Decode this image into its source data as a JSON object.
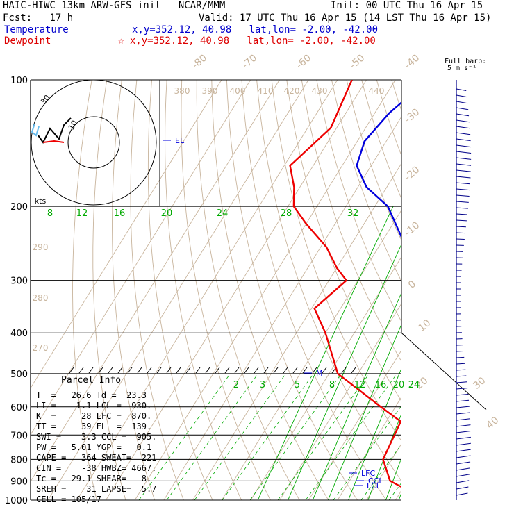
{
  "header": {
    "title": "HAIC-HIWC 13km ARW-GFS init   NCAR/MMM",
    "init": "Init: 00 UTC Thu 16 Apr 15",
    "fcst": "Fcst:   17 h",
    "valid": "Valid: 17 UTC Thu 16 Apr 15 (14 LST Thu 16 Apr 15)",
    "temp_label": "Temperature",
    "temp_loc": "x,y=352.12, 40.98   lat,lon= -2.00, -42.00",
    "dew_label": "Dewpoint",
    "dew_loc": "☆ x,y=352.12, 40.98   lat,lon= -2.00, -42.00",
    "barb_note": "Full barb:",
    "barb_note2": "5 m s⁻¹"
  },
  "colors": {
    "temperature": "#0000dd",
    "dewpoint": "#ee0000",
    "mixing_ratio": "#00aa00",
    "dry_adiabat": "#c8b49c",
    "wind": "#000088"
  },
  "parcel": {
    "title": "Parcel Info",
    "lines": [
      "T  =   26.6 Td =  23.3",
      "LI =   -1.1 LCL =  930.",
      "K  =     28 LFC =  870.",
      "TT =     39 EL  =  139.",
      "SWI =    3.3 CCL =  905.",
      "PW =   5.01 YGP =   0.1",
      "CAPE =   364 SWEAT=  221",
      "CIN =    -38 HWBZ= 4667.",
      "Tc =   29.1 SHEAR=   8.",
      "SREH =    31 LAPSE=  5.7",
      "CELL = 105/17"
    ]
  },
  "chart_data": {
    "type": "line",
    "title": "",
    "pressure_levels": [
      100,
      200,
      300,
      400,
      500,
      600,
      700,
      800,
      900,
      1000
    ],
    "pressure_labels": [
      "100",
      "200",
      "300",
      "400",
      "500",
      "600",
      "700",
      "800",
      "900",
      "1000"
    ],
    "dry_adiabat_labels": [
      "-80",
      "-70",
      "-60",
      "-50",
      "-40",
      "-30",
      "-20",
      "-10",
      "0",
      "10",
      "20",
      "30",
      "40"
    ],
    "theta_labels": [
      "380",
      "390",
      "400",
      "410",
      "420",
      "430",
      "440",
      "290",
      "280",
      "270"
    ],
    "mixing_labels_upper": [
      "8",
      "12",
      "16",
      "20",
      "24",
      "28",
      "32"
    ],
    "mixing_labels_lower": [
      "2",
      "3",
      "5",
      "8",
      "12",
      "16",
      "20",
      "24"
    ],
    "level_markers": [
      "EL",
      "LFC",
      "CCL",
      "LCL",
      "M"
    ],
    "hodograph_labels": [
      "30",
      "10",
      "kts"
    ],
    "series": [
      {
        "name": "Temperature",
        "x": [
          -60.5,
          -65.0,
          -67.5,
          -65.0,
          -57.0,
          -45.5,
          -30.5,
          -18.5,
          -12.0,
          -5.0,
          2.0,
          8.5,
          14.0,
          18.5,
          21.0,
          23.5,
          26.6
        ],
        "p": [
          105,
          120,
          140,
          160,
          180,
          200,
          250,
          300,
          350,
          400,
          450,
          500,
          600,
          700,
          800,
          900,
          1000
        ]
      },
      {
        "name": "Dewpoint",
        "x": [
          -85,
          -82,
          -88,
          -82,
          -78,
          -70,
          -58,
          -50,
          -44,
          -49,
          -40,
          -27,
          -5,
          5,
          7,
          14,
          22.5,
          23.3
        ],
        "p": [
          100,
          130,
          160,
          180,
          200,
          220,
          250,
          280,
          300,
          350,
          400,
          500,
          600,
          650,
          800,
          900,
          950,
          1000
        ]
      }
    ]
  }
}
